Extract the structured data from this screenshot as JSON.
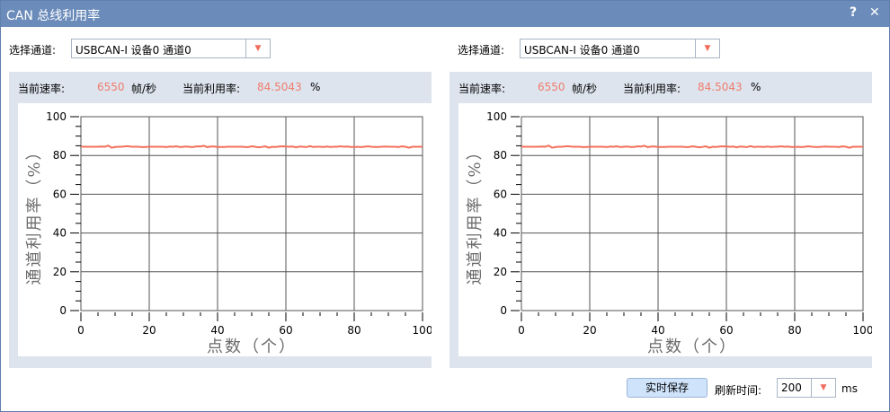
{
  "window": {
    "title": "CAN 总线利用率",
    "help": "?",
    "close": "✕"
  },
  "panels": [
    {
      "select_label": "选择通道:",
      "channel": "USBCAN-I 设备0 通道0",
      "rate_label": "当前速率:",
      "rate": "6550",
      "rate_unit": "帧/秒",
      "util_label": "当前利用率:",
      "util": "84.5043",
      "util_unit": "%"
    },
    {
      "select_label": "选择通道:",
      "channel": "USBCAN-I 设备0 通道0",
      "rate_label": "当前速率:",
      "rate": "6550",
      "rate_unit": "帧/秒",
      "util_label": "当前利用率:",
      "util": "84.5043",
      "util_unit": "%"
    }
  ],
  "chart_data": {
    "type": "line",
    "xlabel": "点数（个）",
    "ylabel": "通道利用率（%）",
    "xlim": [
      0,
      100
    ],
    "ylim": [
      0,
      100
    ],
    "xticks": [
      0,
      20,
      40,
      60,
      80,
      100
    ],
    "yticks": [
      0,
      20,
      40,
      60,
      80,
      100
    ],
    "grid": true,
    "color": "#f36f5a",
    "values": [
      84.6,
      84.5,
      84.5,
      84.5,
      84.5,
      84.5,
      84.6,
      84.5,
      85.1,
      84.0,
      84.4,
      84.5,
      84.5,
      84.7,
      84.7,
      84.5,
      84.5,
      84.5,
      84.3,
      84.4,
      84.5,
      84.5,
      84.5,
      84.5,
      84.5,
      84.3,
      84.6,
      84.5,
      84.7,
      84.3,
      84.5,
      84.6,
      84.4,
      84.4,
      84.7,
      84.6,
      85.0,
      84.3,
      84.6,
      84.6,
      84.4,
      84.4,
      84.4,
      84.5,
      84.5,
      84.5,
      84.5,
      84.5,
      84.4,
      84.3,
      84.7,
      84.5,
      84.2,
      84.4,
      84.7,
      84.0,
      84.5,
      84.4,
      84.6,
      84.7,
      84.6,
      84.5,
      84.6,
      84.2,
      84.6,
      84.5,
      84.3,
      84.8,
      84.4,
      84.5,
      84.5,
      84.4,
      84.6,
      84.4,
      84.5,
      84.5,
      84.7,
      84.5,
      84.6,
      84.4,
      84.4,
      84.5,
      84.3,
      84.5,
      84.7,
      84.5,
      84.4,
      84.4,
      84.5,
      84.6,
      84.5,
      84.5,
      84.5,
      84.3,
      84.7,
      84.5,
      84.0,
      84.5,
      84.5,
      84.5,
      84.5
    ]
  },
  "footer": {
    "save": "实时保存",
    "refresh_label": "刷新时间:",
    "refresh": "200",
    "unit": "ms"
  }
}
